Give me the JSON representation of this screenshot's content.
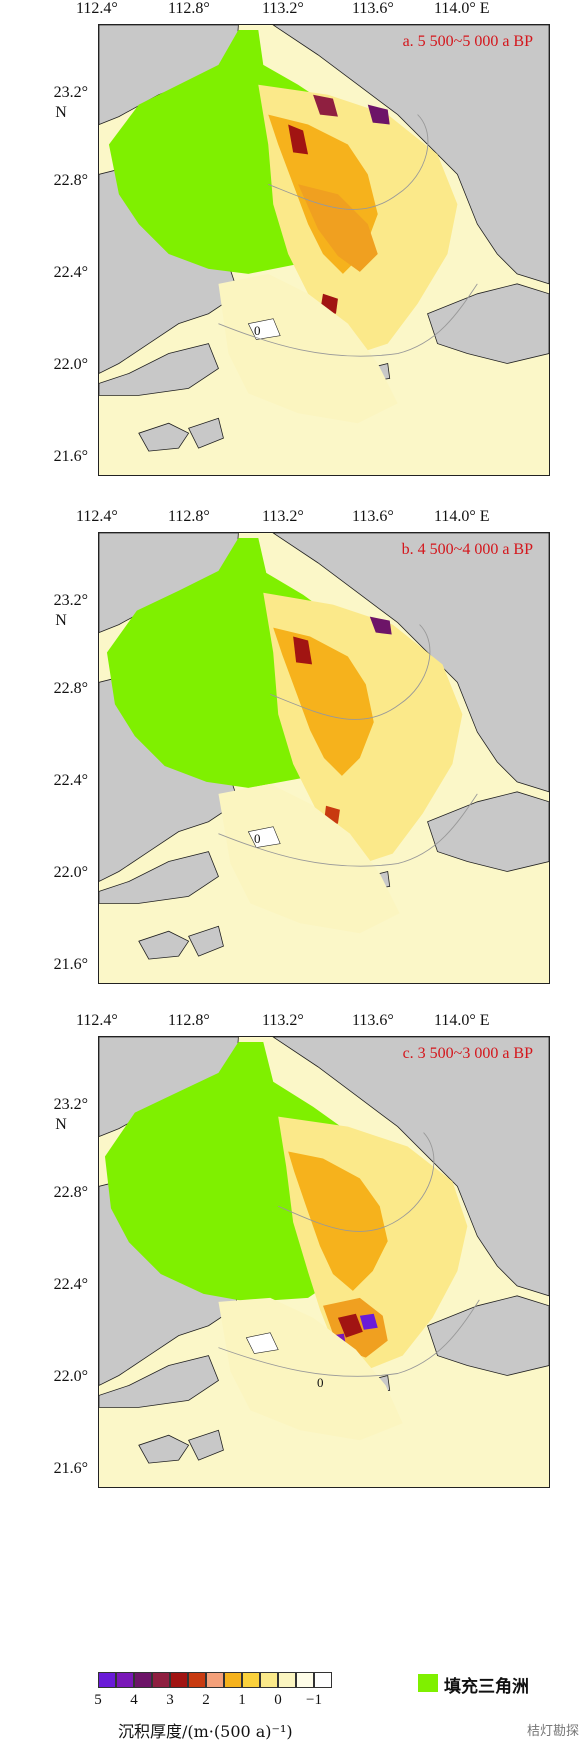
{
  "axes": {
    "lon_ticks": [
      "112.4°",
      "112.8°",
      "113.2°",
      "113.6°",
      "114.0° E"
    ],
    "lat_ticks": [
      "23.2°",
      "22.8°",
      "22.4°",
      "22.0°",
      "21.6°"
    ],
    "lat_unit": "N"
  },
  "panels": [
    {
      "label": "a. 5 500~5 000 a BP",
      "contour_label": "0"
    },
    {
      "label": "b. 4 500~4 000 a BP",
      "contour_label": "0"
    },
    {
      "label": "c. 3 500~3 000 a BP",
      "contour_label": "0"
    }
  ],
  "legend": {
    "title": "沉积厚度/(m·(500 a)⁻¹)",
    "ticks": [
      "5",
      "4",
      "3",
      "2",
      "1",
      "0",
      "−1"
    ],
    "colors": [
      "#6a1bd8",
      "#7a18b8",
      "#6d1468",
      "#8f1f40",
      "#a11412",
      "#c83a10",
      "#f4a07a",
      "#f6b21c",
      "#fbd13c",
      "#fbe98a",
      "#fbf5c0",
      "#fffde8",
      "#ffffff"
    ],
    "delta_label": "填充三角洲",
    "delta_color": "#7ff000"
  },
  "watermark": "桔灯勘探"
}
